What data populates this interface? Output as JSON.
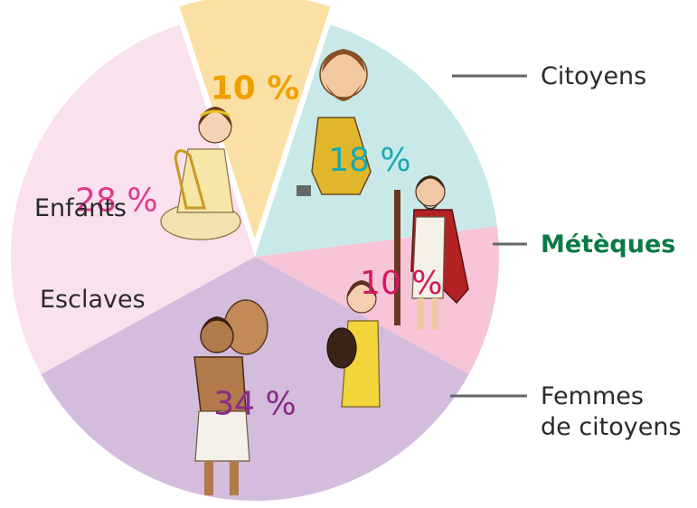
{
  "chart_data": {
    "type": "pie",
    "slices": [
      {
        "name": "Citoyens",
        "value": 10,
        "value_label": "10 %",
        "color": "#fbe0a6",
        "text_color": "#f0a000",
        "exploded": true
      },
      {
        "name": "Métèques",
        "value": 18,
        "value_label": "18 %",
        "color": "#c9e9e9",
        "text_color": "#1aa8b0",
        "exploded": false
      },
      {
        "name": "Femmes de citoyens",
        "value": 10,
        "value_label": "10 %",
        "color": "#f7c4d8",
        "text_color": "#d6175f",
        "exploded": false
      },
      {
        "name": "Esclaves",
        "value": 34,
        "value_label": "34 %",
        "color": "#d3bcdc",
        "text_color": "#8a2a8a",
        "exploded": false
      },
      {
        "name": "Enfants",
        "value": 28,
        "value_label": "28 %",
        "color": "#f9e1ee",
        "text_color": "#e0388a",
        "exploded": false
      }
    ]
  },
  "labels": {
    "citoyens": "Citoyens",
    "meteques": "Métèques",
    "femmes_line1": "Femmes",
    "femmes_line2": "de citoyens",
    "esclaves": "Esclaves",
    "enfants": "Enfants"
  },
  "colors": {
    "highlight_label": "#0a7a45",
    "leader_line": "#666666"
  }
}
